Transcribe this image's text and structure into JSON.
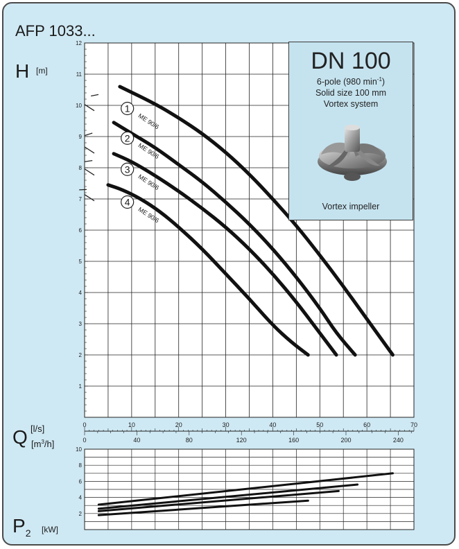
{
  "title": "AFP 1033...",
  "info_box": {
    "heading": "DN 100",
    "pole_prefix": "6-pole (980 min",
    "pole_exp": "-1",
    "pole_suffix": ")",
    "solid_size": "Solid size 100 mm",
    "system": "Vortex system",
    "impeller_label": "Vortex impeller"
  },
  "axis_labels": {
    "h_main": "H",
    "h_unit": "[m]",
    "q_main": "Q",
    "q_unit_ls": "[l/s]",
    "q_unit_m3h_pre": "[m",
    "q_unit_m3h_exp": "3",
    "q_unit_m3h_post": "/h]",
    "p_main": "P",
    "p_sub": "2",
    "p_unit": "[kW]"
  },
  "curve_labels": [
    {
      "num": "1",
      "model": "ME 90/6"
    },
    {
      "num": "2",
      "model": "ME 90/6"
    },
    {
      "num": "3",
      "model": "ME 90/6"
    },
    {
      "num": "4",
      "model": "ME 90/6"
    }
  ],
  "chart_data": [
    {
      "type": "line",
      "title": "AFP 1033...",
      "xlabel": "Q [l/s]",
      "ylabel": "H [m]",
      "xlim": [
        0,
        70
      ],
      "ylim": [
        0,
        12
      ],
      "x_ticks": [
        0,
        10,
        20,
        30,
        40,
        50,
        60,
        70
      ],
      "x_ticks_m3h": [
        0,
        40,
        80,
        120,
        160,
        200,
        240
      ],
      "y_ticks": [
        1,
        2,
        3,
        4,
        5,
        6,
        7,
        8,
        9,
        10,
        11,
        12
      ],
      "grid": true,
      "series": [
        {
          "name": "1 ME 90/6",
          "x": [
            7.5,
            15,
            20,
            25,
            30,
            35,
            40,
            45,
            50,
            55,
            60,
            65.5
          ],
          "y": [
            10.6,
            10.05,
            9.6,
            9.1,
            8.5,
            7.8,
            7.0,
            6.15,
            5.2,
            4.2,
            3.15,
            2.0
          ]
        },
        {
          "name": "2 ME 90/6",
          "x": [
            6.2,
            10,
            15,
            20,
            25,
            30,
            35,
            40,
            45,
            50,
            53.5,
            57.5
          ],
          "y": [
            9.45,
            9.1,
            8.65,
            8.1,
            7.55,
            6.9,
            6.2,
            5.4,
            4.5,
            3.5,
            2.7,
            2.0
          ]
        },
        {
          "name": "3 ME 90/6",
          "x": [
            6.2,
            10,
            15,
            20,
            25,
            30,
            35,
            40,
            45,
            49,
            53.5
          ],
          "y": [
            8.45,
            8.2,
            7.75,
            7.25,
            6.7,
            6.1,
            5.4,
            4.6,
            3.7,
            2.9,
            2.0
          ]
        },
        {
          "name": "4 ME 90/6",
          "x": [
            5.0,
            8,
            12,
            16,
            20,
            25,
            30,
            35,
            40,
            44,
            47.5
          ],
          "y": [
            7.45,
            7.3,
            7.0,
            6.6,
            6.1,
            5.4,
            4.6,
            3.8,
            2.95,
            2.4,
            2.0
          ]
        }
      ]
    },
    {
      "type": "line",
      "xlabel": "Q [l/s]",
      "ylabel": "P2 [kW]",
      "xlim": [
        0,
        70
      ],
      "ylim": [
        0,
        10
      ],
      "y_ticks": [
        2,
        4,
        6,
        8,
        10
      ],
      "grid": true,
      "series": [
        {
          "name": "1",
          "x": [
            3,
            65.5
          ],
          "y": [
            3.1,
            7.0
          ]
        },
        {
          "name": "2",
          "x": [
            3,
            58
          ],
          "y": [
            2.6,
            5.6
          ]
        },
        {
          "name": "3",
          "x": [
            3,
            54
          ],
          "y": [
            2.3,
            4.8
          ]
        },
        {
          "name": "4",
          "x": [
            3,
            47.5
          ],
          "y": [
            1.8,
            3.6
          ]
        }
      ]
    }
  ]
}
